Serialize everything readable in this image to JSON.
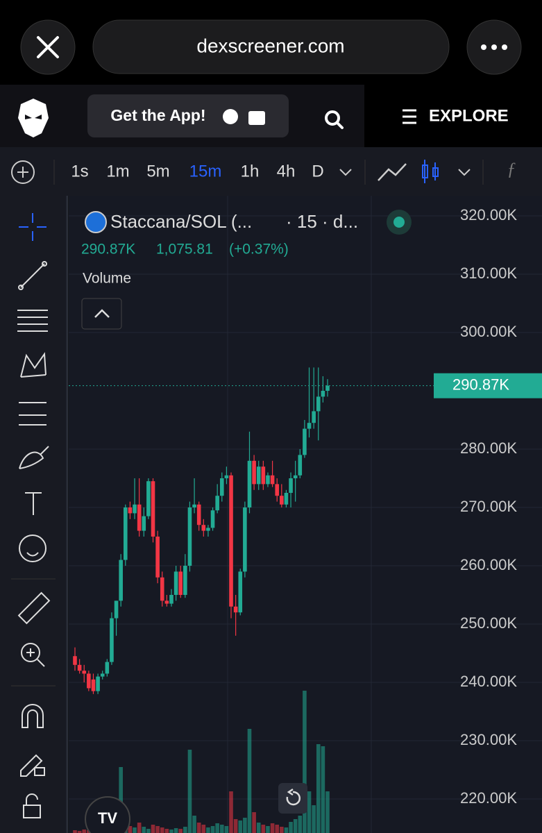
{
  "browser": {
    "url": "dexscreener.com"
  },
  "header": {
    "app_button": "Get the App!",
    "explore": "EXPLORE"
  },
  "toolbar": {
    "timeframes": [
      "1s",
      "1m",
      "5m",
      "15m",
      "1h",
      "4h",
      "D"
    ],
    "active": "15m"
  },
  "chart_data": {
    "type": "candlestick",
    "title": "Staccana/SOL (...",
    "subtitle": "· 15 · d...",
    "legend": {
      "price": "290.87K",
      "change": "1,075.81",
      "change_pct": "(+0.37%)"
    },
    "volume_label": "Volume",
    "up_color": "#22ab94",
    "down_color": "#f23645",
    "ylim": [
      214170,
      323450
    ],
    "yticks": [
      {
        "value": 320000,
        "label": "320.00K"
      },
      {
        "value": 310000,
        "label": "310.00K"
      },
      {
        "value": 300000,
        "label": "300.00K"
      },
      {
        "value": 280000,
        "label": "280.00K"
      },
      {
        "value": 270000,
        "label": "270.00K"
      },
      {
        "value": 260000,
        "label": "260.00K"
      },
      {
        "value": 250000,
        "label": "250.00K"
      },
      {
        "value": 240000,
        "label": "240.00K"
      },
      {
        "value": 230000,
        "label": "230.00K"
      },
      {
        "value": 220000,
        "label": "220.00K"
      }
    ],
    "grid": true,
    "price_line": {
      "value": 290870,
      "label": "290.87K"
    },
    "open": [
      244500,
      243000,
      242000,
      241500,
      240500,
      238500,
      241000,
      241500,
      243500,
      251000,
      254000,
      261000,
      270000,
      269000,
      270500,
      266000,
      268500,
      274500,
      265000,
      258000,
      254000,
      253500,
      255000,
      259000,
      255000,
      260000,
      270000,
      270500,
      267000,
      266000,
      266500,
      269500,
      272000,
      275000,
      275500,
      253000,
      252000,
      259000,
      270000,
      278000,
      274000,
      277000,
      274000,
      275500,
      274000,
      272000,
      270500,
      272500,
      275000,
      275500,
      279000,
      283500,
      284500,
      286500,
      289000,
      290000
    ],
    "high": [
      246000,
      244000,
      243000,
      242000,
      241500,
      241500,
      242000,
      244000,
      252000,
      254000,
      262000,
      270500,
      271000,
      275000,
      275000,
      270000,
      275000,
      275000,
      266000,
      259000,
      255000,
      256000,
      260000,
      260000,
      262000,
      271000,
      275000,
      271000,
      268000,
      267000,
      270000,
      274000,
      276000,
      277000,
      276000,
      255000,
      259500,
      271000,
      283000,
      279000,
      278000,
      278000,
      276000,
      278000,
      275000,
      274000,
      273000,
      276000,
      278000,
      280000,
      285000,
      294000,
      294000,
      294000,
      292500,
      292000
    ],
    "low": [
      242000,
      241500,
      240000,
      238500,
      238000,
      238000,
      240500,
      241000,
      243000,
      248000,
      253000,
      260000,
      268000,
      268000,
      265000,
      265000,
      268000,
      264000,
      257000,
      253000,
      253000,
      253000,
      254000,
      254500,
      254500,
      259000,
      269000,
      266000,
      265000,
      265000,
      266000,
      269000,
      271000,
      274000,
      251000,
      248000,
      251500,
      258000,
      269000,
      273000,
      273000,
      273000,
      273500,
      273500,
      271000,
      270000,
      270000,
      270000,
      271000,
      275000,
      278500,
      282000,
      283500,
      281500,
      288000,
      289000
    ],
    "close": [
      243000,
      242000,
      241500,
      239000,
      238500,
      241000,
      241500,
      243500,
      251000,
      254000,
      261000,
      270000,
      269000,
      270500,
      266000,
      268500,
      274500,
      265000,
      258000,
      254000,
      253500,
      255000,
      259000,
      255000,
      260000,
      270000,
      270500,
      267000,
      266000,
      266500,
      269500,
      272000,
      275000,
      275500,
      253000,
      252000,
      259000,
      270000,
      278000,
      274000,
      277000,
      274000,
      275500,
      274000,
      272000,
      270500,
      272500,
      275000,
      275500,
      279000,
      283500,
      284500,
      286500,
      289000,
      290000,
      290870
    ],
    "volume": [
      4,
      3,
      5,
      4,
      6,
      5,
      3,
      4,
      8,
      12,
      95,
      20,
      10,
      8,
      15,
      9,
      6,
      12,
      10,
      8,
      6,
      5,
      7,
      6,
      9,
      120,
      25,
      15,
      12,
      8,
      10,
      14,
      12,
      10,
      60,
      20,
      18,
      22,
      150,
      30,
      15,
      12,
      10,
      14,
      12,
      9,
      8,
      16,
      20,
      25,
      205,
      60,
      40,
      128,
      125,
      60
    ]
  }
}
